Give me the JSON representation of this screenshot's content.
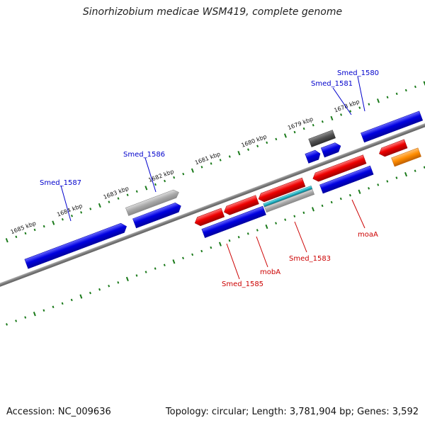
{
  "title": "Sinorhizobium medicae WSM419, complete genome",
  "accession": "Accession: NC_009636",
  "summary": "Topology: circular; Length: 3,781,904 bp; Genes: 3,592",
  "colors": {
    "backbone": "#808080",
    "tick": "#1a7a1a",
    "plus_label": "#0000cc",
    "minus_label": "#cc0000",
    "blue": "#0000e0",
    "red": "#ee0000",
    "gray": "#a0a0a0",
    "dark_gray": "#505050",
    "cyan": "#20b0c0",
    "orange": "#ff8c00"
  },
  "kbp_labels": [
    "1685 kbp",
    "1684 kbp",
    "1683 kbp",
    "1682 kbp",
    "1681 kbp",
    "1680 kbp",
    "1679 kbp",
    "1678 kbp"
  ],
  "genes_forward": [
    {
      "name": "Smed_1587",
      "color": "blue"
    },
    {
      "name": "Smed_1586",
      "color": "blue"
    },
    {
      "name": "",
      "color": "gray"
    },
    {
      "name": "Smed_1581",
      "color": "blue"
    },
    {
      "name": "Smed_1580",
      "color": "blue"
    },
    {
      "name": "",
      "color": "dark_gray"
    },
    {
      "name": "",
      "color": "blue"
    }
  ],
  "genes_reverse": [
    {
      "name": "Smed_1585",
      "color": "red"
    },
    {
      "name": "mobA",
      "color": "red"
    },
    {
      "name": "Smed_1583",
      "color": "red"
    },
    {
      "name": "moaA",
      "color": "red"
    },
    {
      "name": "",
      "color": "blue"
    },
    {
      "name": "",
      "color": "cyan"
    },
    {
      "name": "",
      "color": "orange"
    }
  ]
}
